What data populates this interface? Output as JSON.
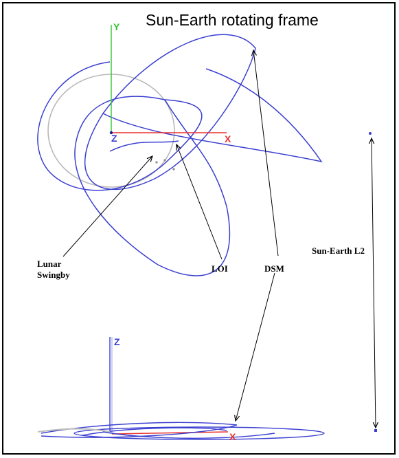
{
  "title": "Sun-Earth rotating frame",
  "labels": {
    "lunar_line1": "Lunar",
    "lunar_line2": "Swingby",
    "loi": "LOI",
    "dsm": "DSM",
    "l2": "Sun-Earth L2"
  },
  "axes": {
    "top_y": "Y",
    "top_z": "Z",
    "top_x": "X",
    "bottom_z": "Z",
    "bottom_x": "X"
  },
  "colors": {
    "trajectory": "#3a3fd0",
    "x_axis": "#e8322f",
    "y_axis": "#2fc42f",
    "z_axis": "#3a3fd0",
    "moon_orbit": "#b9b9b9",
    "arrows": "#000000"
  }
}
